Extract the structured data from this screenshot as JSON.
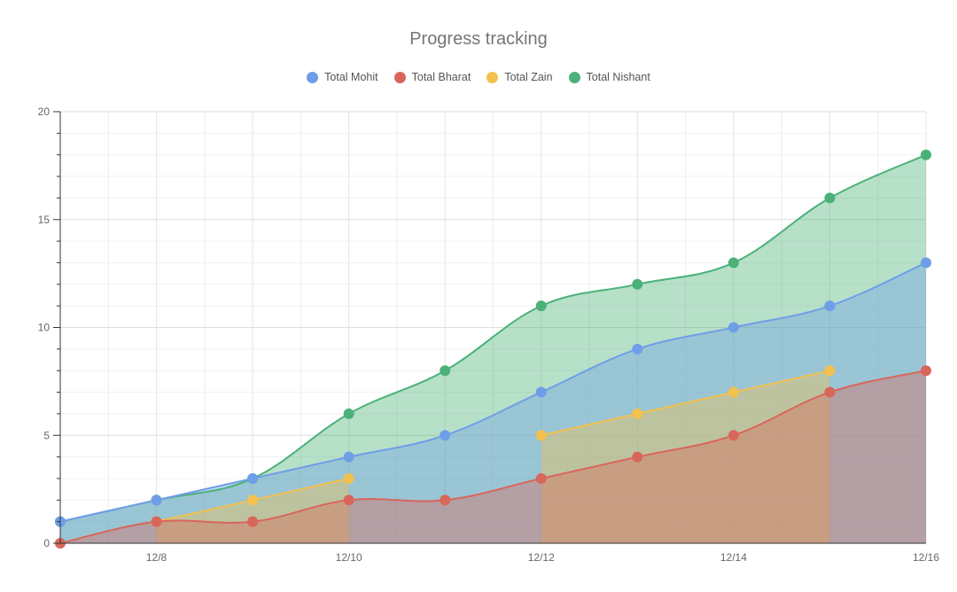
{
  "chart_data": {
    "type": "area",
    "title": "Progress tracking",
    "xlabel": "",
    "ylabel": "",
    "x": [
      "12/7",
      "12/8",
      "12/9",
      "12/10",
      "12/11",
      "12/12",
      "12/13",
      "12/14",
      "12/15",
      "12/16"
    ],
    "x_tick_labels": [
      "12/8",
      "12/10",
      "12/12",
      "12/14",
      "12/16"
    ],
    "y_tick_labels": [
      "0",
      "5",
      "10",
      "15",
      "20"
    ],
    "ylim": [
      0,
      20
    ],
    "grid": true,
    "legend_position": "top",
    "series": [
      {
        "name": "Total Mohit",
        "color": "#6f9ee8",
        "values": [
          1,
          2,
          3,
          4,
          5,
          7,
          9,
          10,
          11,
          13
        ]
      },
      {
        "name": "Total Bharat",
        "color": "#d9665a",
        "values": [
          0,
          1,
          1,
          2,
          2,
          3,
          4,
          5,
          7,
          8
        ]
      },
      {
        "name": "Total Zain",
        "color": "#f2c14e",
        "values": [
          null,
          1,
          2,
          3,
          null,
          5,
          6,
          7,
          8,
          null
        ]
      },
      {
        "name": "Total Nishant",
        "color": "#4bb179",
        "values": [
          1,
          2,
          3,
          6,
          8,
          11,
          12,
          13,
          16,
          18
        ]
      }
    ]
  }
}
